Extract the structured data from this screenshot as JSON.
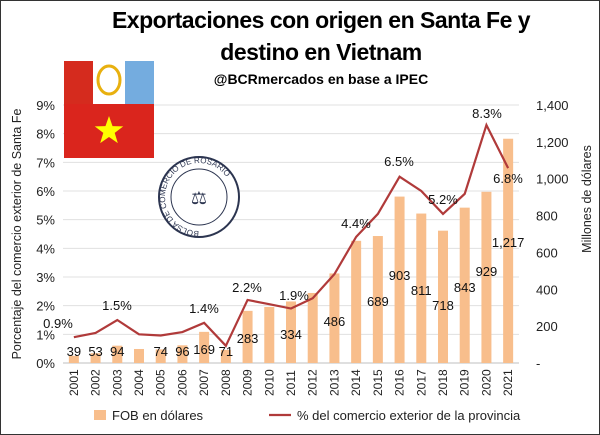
{
  "chart_data": {
    "type": "bar+line",
    "title_line1": "Exportaciones con origen en Santa Fe y",
    "title_line2": "destino en Vietnam",
    "subtitle": "@BCRmercados en base a IPEC",
    "categories": [
      "2001",
      "2002",
      "2003",
      "2004",
      "2005",
      "2006",
      "2007",
      "2008",
      "2009",
      "2010",
      "2011",
      "2012",
      "2013",
      "2014",
      "2015",
      "2016",
      "2017",
      "2018",
      "2019",
      "2020",
      "2021"
    ],
    "series": [
      {
        "name": "FOB en dólares",
        "type": "bar",
        "axis": "right",
        "color": "#F8BE8C",
        "values": [
          39,
          53,
          94,
          76,
          74,
          96,
          169,
          71,
          283,
          304,
          334,
          380,
          486,
          663,
          689,
          903,
          811,
          718,
          843,
          929,
          1217
        ],
        "labels": [
          "39",
          "53",
          "94",
          null,
          "74",
          "96",
          "169",
          "71",
          "283",
          null,
          "334",
          null,
          "486",
          null,
          "689",
          "903",
          "811",
          "718",
          "843",
          "929",
          "1,217"
        ]
      },
      {
        "name": "% del comercio exterior de la provincia",
        "type": "line",
        "axis": "left",
        "color": "#B03A3A",
        "values": [
          0.9,
          1.05,
          1.5,
          1.0,
          0.96,
          1.08,
          1.4,
          0.6,
          2.2,
          2.05,
          1.9,
          2.26,
          3.1,
          4.4,
          5.2,
          6.5,
          6.0,
          5.2,
          5.9,
          8.3,
          6.8
        ],
        "labels": [
          "0.9%",
          null,
          "1.5%",
          null,
          null,
          null,
          "1.4%",
          null,
          "2.2%",
          null,
          "1.9%",
          null,
          null,
          "4.4%",
          null,
          "6.5%",
          null,
          "5.2%",
          null,
          "8.3%",
          "6.8%"
        ]
      }
    ],
    "ylabel_left": "Porcentaje del comercio exterior de Santa Fe",
    "ylabel_right": "Millones de dólares",
    "ylim_left": [
      0,
      9
    ],
    "ylim_right": [
      0,
      1400
    ],
    "left_ticks": [
      "0%",
      "1%",
      "2%",
      "3%",
      "4%",
      "5%",
      "6%",
      "7%",
      "8%",
      "9%"
    ],
    "right_ticks": [
      "-",
      "200",
      "400",
      "600",
      "800",
      "1,000",
      "1,200",
      "1,400"
    ],
    "grid": true,
    "legend": "bottom"
  },
  "logo": {
    "seal_text": "BOLSA DE COMERCIO DE ROSARIO"
  }
}
